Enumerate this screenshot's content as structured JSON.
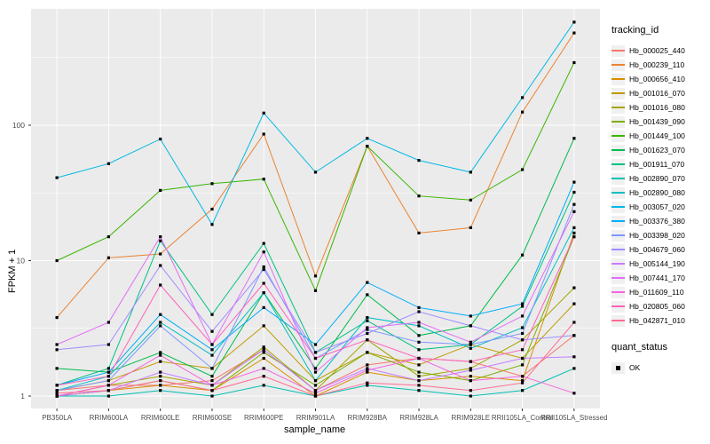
{
  "chart_data": {
    "type": "line",
    "title": "",
    "xlabel": "sample_name",
    "ylabel": "FPKM + 1",
    "y_scale": "log10",
    "y_ticks": [
      1,
      10,
      100
    ],
    "y_minor_breaks": [
      3.162,
      31.62,
      316.2
    ],
    "ylim": [
      0.85,
      700
    ],
    "grid": true,
    "legend_position": "right",
    "panel_background": "#EBEBEB",
    "gridline_color": "#FFFFFF",
    "point_shape": "filled-square",
    "point_color": "#000000",
    "categories": [
      "PB350LA",
      "RRIM600LA",
      "RRIM600LE",
      "RRIM600SE",
      "RRIM600PE",
      "RRIM901LA",
      "RRIM928BA",
      "RRIM928LA",
      "RRIM928LE",
      "RRII105LA_Control",
      "RRII105LA_Stressed"
    ],
    "legend_title": "tracking_id",
    "series": [
      {
        "name": "Hb_000025_440",
        "color": "#F8766D",
        "values": [
          1.1,
          1.2,
          1.2,
          1.3,
          2.2,
          1.1,
          1.7,
          1.9,
          1.8,
          1.4,
          2.8
        ]
      },
      {
        "name": "Hb_000239_110",
        "color": "#EA8331",
        "values": [
          3.8,
          10.5,
          11.2,
          24,
          86,
          7.7,
          70,
          16,
          17.5,
          125,
          480
        ]
      },
      {
        "name": "Hb_000656_410",
        "color": "#D89000",
        "values": [
          1.0,
          1.1,
          1.2,
          1.1,
          1.9,
          1.0,
          1.5,
          1.3,
          1.4,
          1.3,
          16
        ]
      },
      {
        "name": "Hb_001016_070",
        "color": "#C09B00",
        "values": [
          1.1,
          1.3,
          1.8,
          1.6,
          3.3,
          1.3,
          2.1,
          1.7,
          2.4,
          1.9,
          4.8
        ]
      },
      {
        "name": "Hb_001016_080",
        "color": "#A3A500",
        "values": [
          1.0,
          1.2,
          1.4,
          1.2,
          2.3,
          1.1,
          2.6,
          1.4,
          1.6,
          2.6,
          6.3
        ]
      },
      {
        "name": "Hb_001439_090",
        "color": "#7CAE00",
        "values": [
          1.0,
          1.1,
          1.3,
          1.1,
          2.1,
          1.2,
          2.1,
          1.5,
          1.3,
          1.7,
          15
        ]
      },
      {
        "name": "Hb_001449_100",
        "color": "#39B600",
        "values": [
          10,
          15,
          33,
          37,
          40,
          6.0,
          70,
          30,
          28,
          47,
          290
        ]
      },
      {
        "name": "Hb_001623_070",
        "color": "#00BB4E",
        "values": [
          1.6,
          1.5,
          2.1,
          1.4,
          5.8,
          1.6,
          5.6,
          2.8,
          3.3,
          11,
          80
        ]
      },
      {
        "name": "Hb_001911_070",
        "color": "#00C083",
        "values": [
          1.2,
          1.6,
          14,
          4.0,
          13.4,
          2.1,
          3.6,
          2.2,
          2.4,
          4.6,
          32
        ]
      },
      {
        "name": "Hb_002890_070",
        "color": "#00C0B2",
        "values": [
          1.0,
          1.0,
          1.1,
          1.0,
          1.2,
          1.0,
          1.2,
          1.1,
          1.0,
          1.1,
          1.6
        ]
      },
      {
        "name": "Hb_002890_080",
        "color": "#00BFC4",
        "values": [
          1.1,
          1.4,
          3.5,
          2.0,
          5.8,
          1.3,
          3.8,
          3.3,
          2.25,
          3.2,
          17.5
        ]
      },
      {
        "name": "Hb_003057_020",
        "color": "#00B9E3",
        "values": [
          41,
          52,
          79,
          18.5,
          123,
          45,
          80,
          55,
          45,
          160,
          577
        ]
      },
      {
        "name": "Hb_003376_380",
        "color": "#00ACFC",
        "values": [
          1.2,
          1.5,
          4.0,
          2.2,
          4.5,
          2.4,
          6.9,
          4.5,
          3.9,
          4.8,
          38
        ]
      },
      {
        "name": "Hb_003398_020",
        "color": "#7F96FF",
        "values": [
          1.1,
          1.3,
          3.3,
          1.6,
          9.0,
          1.9,
          3.1,
          2.5,
          2.4,
          2.9,
          26
        ]
      },
      {
        "name": "Hb_004679_060",
        "color": "#A18CFF",
        "values": [
          2.2,
          2.4,
          9.2,
          3.0,
          8.6,
          2.1,
          2.9,
          4.2,
          3.3,
          2.6,
          2.8
        ]
      },
      {
        "name": "Hb_005144_190",
        "color": "#C77CFF",
        "values": [
          1.0,
          1.1,
          1.5,
          1.2,
          2.2,
          1.1,
          1.6,
          1.3,
          1.55,
          1.9,
          1.95
        ]
      },
      {
        "name": "Hb_007441_170",
        "color": "#E26EF7",
        "values": [
          2.4,
          3.5,
          15,
          2.4,
          11.6,
          1.5,
          3.2,
          3.5,
          2.5,
          3.9,
          23
        ]
      },
      {
        "name": "Hb_011609_110",
        "color": "#F564E0",
        "values": [
          1.0,
          1.2,
          2.0,
          1.2,
          1.6,
          1.05,
          1.55,
          1.9,
          1.3,
          1.4,
          1.05
        ]
      },
      {
        "name": "Hb_020805_060",
        "color": "#FF62BC",
        "values": [
          1.2,
          1.4,
          6.6,
          2.4,
          6.8,
          1.9,
          2.6,
          1.9,
          1.8,
          2.2,
          15
        ]
      },
      {
        "name": "Hb_042871_010",
        "color": "#FF6B94",
        "values": [
          1.05,
          1.1,
          1.3,
          1.1,
          1.4,
          1.0,
          1.25,
          1.2,
          1.1,
          1.25,
          3.5
        ]
      }
    ],
    "quant_legend": {
      "title": "quant_status",
      "items": [
        {
          "label": "OK",
          "shape": "filled-square",
          "color": "#000000"
        }
      ]
    }
  }
}
